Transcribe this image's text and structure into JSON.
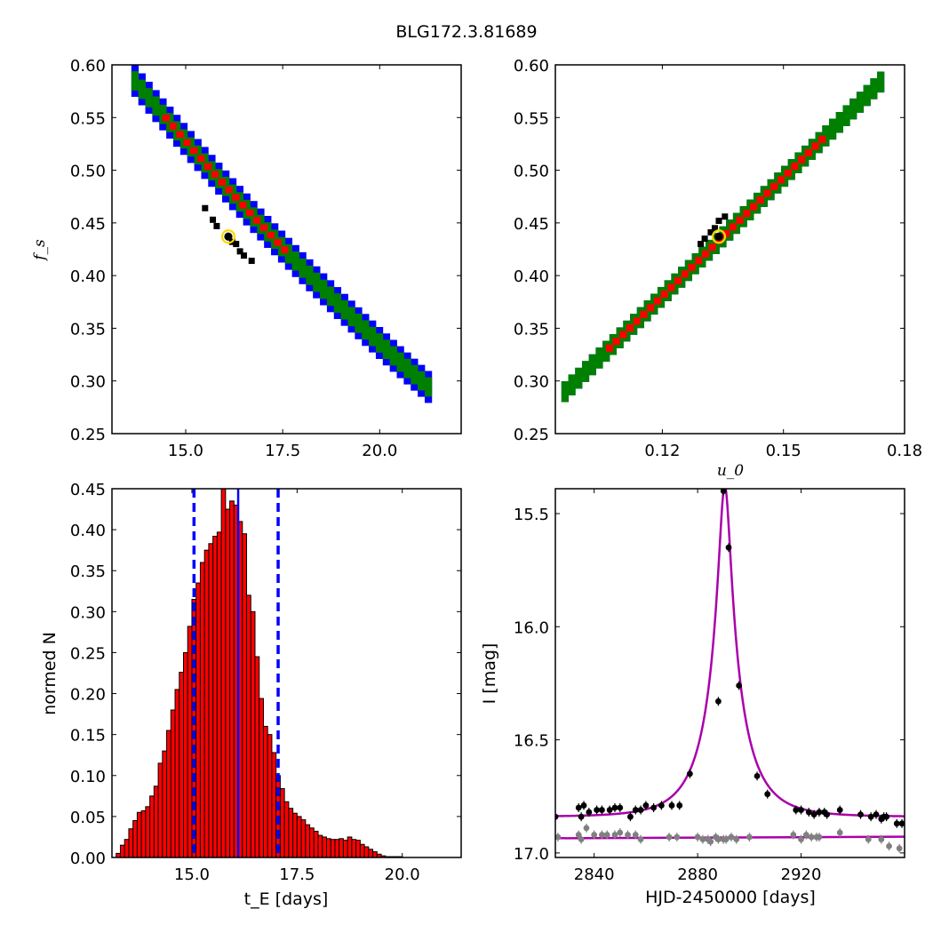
{
  "figure": {
    "title": "BLG172.3.81689"
  },
  "chart_data": [
    {
      "type": "heatmap",
      "panel": "fs-vs-tE",
      "xlabel": "",
      "ylabel": "f_s",
      "xlim": [
        13.1,
        22.1
      ],
      "ylim": [
        0.25,
        0.6
      ],
      "xticks": [
        15.0,
        17.5,
        20.0
      ],
      "xtick_labels": [
        "15.0",
        "17.5",
        "20.0"
      ],
      "yticks": [
        0.25,
        0.3,
        0.35,
        0.4,
        0.45,
        0.5,
        0.55,
        0.6
      ],
      "ytick_labels": [
        "0.25",
        "0.30",
        "0.35",
        "0.40",
        "0.45",
        "0.50",
        "0.55",
        "0.60"
      ],
      "cell": [
        0.18,
        0.006
      ],
      "band_x": [
        13.6,
        21.3
      ],
      "band_y": [
        0.585,
        0.29
      ],
      "curvature": -0.05,
      "levels": [
        {
          "name": "3-sigma",
          "color": "#0000ff",
          "width": 0.016
        },
        {
          "name": "2-sigma",
          "color": "#008000",
          "width": 0.01
        },
        {
          "name": "1-sigma",
          "color": "#ff0000",
          "width": 0.006,
          "x_range": [
            14.4,
            17.6
          ]
        }
      ],
      "density_points": [
        [
          15.5,
          0.464
        ],
        [
          15.7,
          0.453
        ],
        [
          15.8,
          0.447
        ],
        [
          16.2,
          0.432
        ],
        [
          16.3,
          0.43
        ],
        [
          16.4,
          0.423
        ],
        [
          16.5,
          0.419
        ],
        [
          16.7,
          0.414
        ]
      ],
      "best_fit": [
        16.1,
        0.437
      ]
    },
    {
      "type": "heatmap",
      "panel": "fs-vs-u0",
      "xlabel": "u_0",
      "ylabel": "",
      "xlim": [
        0.0935,
        0.18
      ],
      "ylim": [
        0.25,
        0.6
      ],
      "xticks": [
        0.12,
        0.15,
        0.18
      ],
      "xtick_labels": [
        "0.12",
        "0.15",
        "0.18"
      ],
      "yticks": [
        0.25,
        0.3,
        0.35,
        0.4,
        0.45,
        0.5,
        0.55,
        0.6
      ],
      "ytick_labels": [
        "0.25",
        "0.30",
        "0.35",
        "0.40",
        "0.45",
        "0.50",
        "0.55",
        "0.60"
      ],
      "cell": [
        0.0017,
        0.0065
      ],
      "band_x": [
        0.095,
        0.1735
      ],
      "band_y": [
        0.29,
        0.585
      ],
      "curvature": 0,
      "levels": [
        {
          "name": "3-sigma",
          "color": "#0000ff",
          "width": 0.011
        },
        {
          "name": "2-sigma",
          "color": "#008000",
          "width": 0.008
        },
        {
          "name": "1-sigma",
          "color": "#ff0000",
          "width": 0.005,
          "x_range": [
            0.106,
            0.16
          ]
        }
      ],
      "density_points": [
        [
          0.1295,
          0.43
        ],
        [
          0.1305,
          0.435
        ],
        [
          0.132,
          0.441
        ],
        [
          0.133,
          0.445
        ],
        [
          0.134,
          0.452
        ],
        [
          0.1355,
          0.456
        ]
      ],
      "best_fit": [
        0.134,
        0.437
      ]
    },
    {
      "type": "bar",
      "panel": "tE-histogram",
      "xlabel": "t_E [days]",
      "ylabel": "normed N",
      "xlim": [
        13.1,
        21.4
      ],
      "ylim": [
        0.0,
        0.45
      ],
      "xticks": [
        15.0,
        17.5,
        20.0
      ],
      "xtick_labels": [
        "15.0",
        "17.5",
        "20.0"
      ],
      "yticks": [
        0.0,
        0.05,
        0.1,
        0.15,
        0.2,
        0.25,
        0.3,
        0.35,
        0.4,
        0.45
      ],
      "ytick_labels": [
        "0.00",
        "0.05",
        "0.10",
        "0.15",
        "0.20",
        "0.25",
        "0.30",
        "0.35",
        "0.40",
        "0.45"
      ],
      "bar_color": "#ff0000",
      "bin_start": 13.2,
      "bin_width": 0.1,
      "values": [
        0.005,
        0.015,
        0.022,
        0.035,
        0.045,
        0.055,
        0.057,
        0.062,
        0.075,
        0.087,
        0.115,
        0.13,
        0.155,
        0.18,
        0.205,
        0.226,
        0.25,
        0.282,
        0.315,
        0.335,
        0.36,
        0.375,
        0.383,
        0.392,
        0.397,
        0.46,
        0.425,
        0.435,
        0.43,
        0.41,
        0.395,
        0.32,
        0.3,
        0.245,
        0.194,
        0.16,
        0.15,
        0.128,
        0.1,
        0.084,
        0.068,
        0.06,
        0.054,
        0.05,
        0.046,
        0.04,
        0.036,
        0.032,
        0.027,
        0.025,
        0.023,
        0.022,
        0.022,
        0.023,
        0.021,
        0.025,
        0.022,
        0.021,
        0.016,
        0.013,
        0.01,
        0.007,
        0.004,
        0.002,
        0.001,
        0.001,
        0.001,
        0.001,
        0.0
      ],
      "median": 16.1,
      "interval": [
        15.05,
        17.05
      ],
      "line_color": "#0000ff"
    },
    {
      "type": "line",
      "panel": "light-curve",
      "xlabel": "HJD-2450000 [days]",
      "ylabel": "I [mag]",
      "xlim": [
        2825,
        2960
      ],
      "ylim": [
        17.02,
        15.39
      ],
      "xticks": [
        2840,
        2880,
        2920
      ],
      "xtick_labels": [
        "2840",
        "2880",
        "2920"
      ],
      "yticks": [
        15.5,
        16.0,
        16.5,
        17.0
      ],
      "ytick_labels": [
        "15.5",
        "16.0",
        "16.5",
        "17.0"
      ],
      "model": {
        "t0": 2890.5,
        "tE": 16.1,
        "u0": 0.134,
        "fs": 0.437,
        "baseline": 16.84,
        "color": "#aa00aa"
      },
      "model_line": {
        "base": 16.935,
        "slope": -5e-05,
        "color": "#aa00aa"
      },
      "series": [
        {
          "color": "#000000",
          "x": [
            2825,
            2834,
            2835,
            2836,
            2838,
            2841,
            2843,
            2846,
            2848,
            2850,
            2854,
            2856,
            2858,
            2860,
            2863,
            2866,
            2870,
            2873,
            2877,
            2888,
            2890,
            2892,
            2896,
            2903,
            2907,
            2918,
            2920,
            2923,
            2925,
            2927,
            2929,
            2930,
            2935,
            2943,
            2947,
            2949,
            2951,
            2952,
            2953,
            2957,
            2959
          ],
          "y": [
            16.84,
            16.8,
            16.84,
            16.79,
            16.82,
            16.81,
            16.81,
            16.81,
            16.8,
            16.8,
            16.84,
            16.81,
            16.81,
            16.79,
            16.8,
            16.79,
            16.79,
            16.79,
            16.65,
            16.33,
            15.4,
            15.65,
            16.26,
            16.66,
            16.74,
            16.81,
            16.81,
            16.82,
            16.83,
            16.82,
            16.82,
            16.83,
            16.81,
            16.83,
            16.84,
            16.83,
            16.85,
            16.84,
            16.84,
            16.87,
            16.87
          ]
        },
        {
          "color": "#808080",
          "x": [
            2826,
            2834,
            2835,
            2837,
            2840,
            2843,
            2845,
            2848,
            2850,
            2853,
            2856,
            2858,
            2869,
            2872,
            2880,
            2882,
            2884,
            2885,
            2887,
            2888,
            2890,
            2891,
            2893,
            2895,
            2900,
            2917,
            2920,
            2922,
            2924,
            2926,
            2927,
            2935,
            2946,
            2951,
            2954,
            2958
          ],
          "y": [
            16.93,
            16.92,
            16.94,
            16.89,
            16.92,
            16.92,
            16.92,
            16.92,
            16.91,
            16.92,
            16.92,
            16.94,
            16.93,
            16.93,
            16.93,
            16.94,
            16.94,
            16.95,
            16.93,
            16.94,
            16.94,
            16.94,
            16.93,
            16.94,
            16.93,
            16.92,
            16.94,
            16.92,
            16.93,
            16.93,
            16.93,
            16.91,
            16.94,
            16.94,
            16.97,
            16.98
          ]
        }
      ]
    }
  ]
}
